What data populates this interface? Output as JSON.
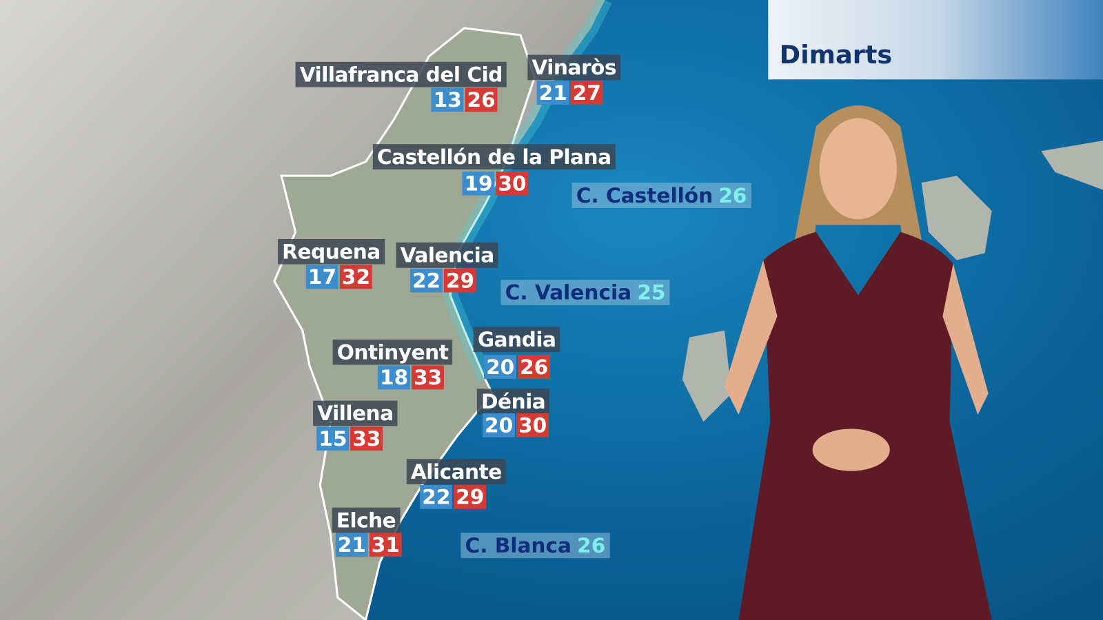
{
  "header": {
    "day": "Dimarts"
  },
  "cities": [
    {
      "name": "Villafranca del Cid",
      "min": "13",
      "max": "26"
    },
    {
      "name": "Vinaròs",
      "min": "21",
      "max": "27"
    },
    {
      "name": "Castellón de la Plana",
      "min": "19",
      "max": "30"
    },
    {
      "name": "Requena",
      "min": "17",
      "max": "32"
    },
    {
      "name": "Valencia",
      "min": "22",
      "max": "29"
    },
    {
      "name": "Gandia",
      "min": "20",
      "max": "26"
    },
    {
      "name": "Ontinyent",
      "min": "18",
      "max": "33"
    },
    {
      "name": "Dénia",
      "min": "20",
      "max": "30"
    },
    {
      "name": "Villena",
      "min": "15",
      "max": "33"
    },
    {
      "name": "Alicante",
      "min": "22",
      "max": "29"
    },
    {
      "name": "Elche",
      "min": "21",
      "max": "31"
    }
  ],
  "sea": [
    {
      "name": "C. Castellón",
      "temp": "26"
    },
    {
      "name": "C. Valencia",
      "temp": "25"
    },
    {
      "name": "C. Blanca",
      "temp": "26"
    }
  ],
  "colors": {
    "min": "#3d8ccc",
    "max": "#d63a35",
    "sea": "#0a5a8e",
    "land": "#b9b7b0"
  }
}
